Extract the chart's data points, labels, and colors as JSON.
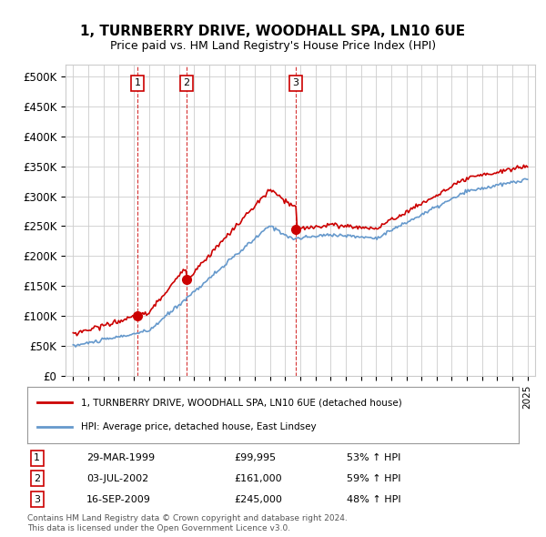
{
  "title": "1, TURNBERRY DRIVE, WOODHALL SPA, LN10 6UE",
  "subtitle": "Price paid vs. HM Land Registry's House Price Index (HPI)",
  "sale_dates": [
    "1999-03-29",
    "2002-07-03",
    "2009-09-16"
  ],
  "sale_prices": [
    99995,
    161000,
    245000
  ],
  "sale_labels": [
    "1",
    "2",
    "3"
  ],
  "sale_times": [
    1999.24,
    2002.5,
    2009.71
  ],
  "table_data": [
    [
      "1",
      "29-MAR-1999",
      "£99,995",
      "53% ↑ HPI"
    ],
    [
      "2",
      "03-JUL-2002",
      "£161,000",
      "59% ↑ HPI"
    ],
    [
      "3",
      "16-SEP-2009",
      "£245,000",
      "48% ↑ HPI"
    ]
  ],
  "legend_line1": "1, TURNBERRY DRIVE, WOODHALL SPA, LN10 6UE (detached house)",
  "legend_line2": "HPI: Average price, detached house, East Lindsey",
  "footnote": "Contains HM Land Registry data © Crown copyright and database right 2024.\nThis data is licensed under the Open Government Licence v3.0.",
  "red_line_color": "#cc0000",
  "blue_line_color": "#6699cc",
  "vline_color": "#cc0000",
  "grid_color": "#cccccc",
  "background_color": "#ffffff",
  "ylim": [
    0,
    520000
  ],
  "yticks": [
    0,
    50000,
    100000,
    150000,
    200000,
    250000,
    300000,
    350000,
    400000,
    450000,
    500000
  ],
  "points_per_year": 12,
  "start_year": 1995,
  "end_year": 2025
}
